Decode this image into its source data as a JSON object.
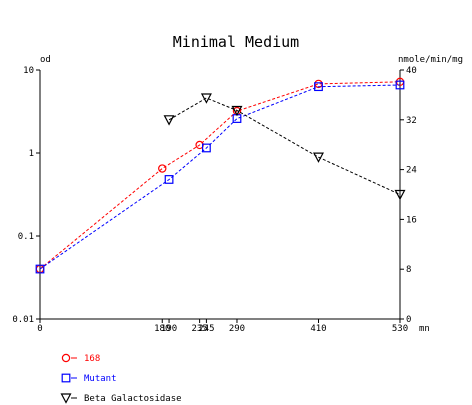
{
  "chart_data": {
    "type": "line",
    "title": "Minimal Medium",
    "left_axis": {
      "label": "od",
      "scale": "log",
      "range": [
        0.01,
        10
      ],
      "ticks": [
        {
          "value": 10,
          "label": "10"
        },
        {
          "value": 1,
          "label": "1"
        },
        {
          "value": 0.1,
          "label": "0.1"
        },
        {
          "value": 0.01,
          "label": "0.01"
        }
      ]
    },
    "right_axis": {
      "label": "nmole/min/mg",
      "scale": "linear",
      "range": [
        0,
        40
      ],
      "ticks": [
        {
          "value": 40,
          "label": "40"
        },
        {
          "value": 32,
          "label": "32"
        },
        {
          "value": 24,
          "label": "24"
        },
        {
          "value": 16,
          "label": "16"
        },
        {
          "value": 8,
          "label": "8"
        },
        {
          "value": 0,
          "label": "0"
        }
      ]
    },
    "x_axis": {
      "unit": "mn",
      "range": [
        0,
        530
      ],
      "ticks": [
        {
          "value": 0,
          "label": "0"
        },
        {
          "value": 180,
          "label": "180"
        },
        {
          "value": 190,
          "label": "190"
        },
        {
          "value": 235,
          "label": "235"
        },
        {
          "value": 245,
          "label": "245"
        },
        {
          "value": 290,
          "label": "290"
        },
        {
          "value": 410,
          "label": "410"
        },
        {
          "value": 530,
          "label": "530"
        }
      ]
    },
    "series": [
      {
        "name": "168",
        "axis": "left",
        "color": "#ff0000",
        "marker": "circle",
        "points": [
          [
            0,
            0.04
          ],
          [
            180,
            0.65
          ],
          [
            235,
            1.25
          ],
          [
            290,
            3.2
          ],
          [
            410,
            6.8
          ],
          [
            530,
            7.2
          ]
        ]
      },
      {
        "name": "Mutant",
        "axis": "left",
        "color": "#0000ff",
        "marker": "square",
        "points": [
          [
            0,
            0.04
          ],
          [
            190,
            0.48
          ],
          [
            245,
            1.15
          ],
          [
            290,
            2.6
          ],
          [
            410,
            6.3
          ],
          [
            530,
            6.6
          ]
        ]
      },
      {
        "name": "Beta Galactosidase",
        "axis": "right",
        "color": "#000000",
        "marker": "triangle-down",
        "points": [
          [
            190,
            32
          ],
          [
            245,
            35.5
          ],
          [
            290,
            33.5
          ],
          [
            410,
            26
          ],
          [
            530,
            20
          ]
        ]
      }
    ]
  }
}
